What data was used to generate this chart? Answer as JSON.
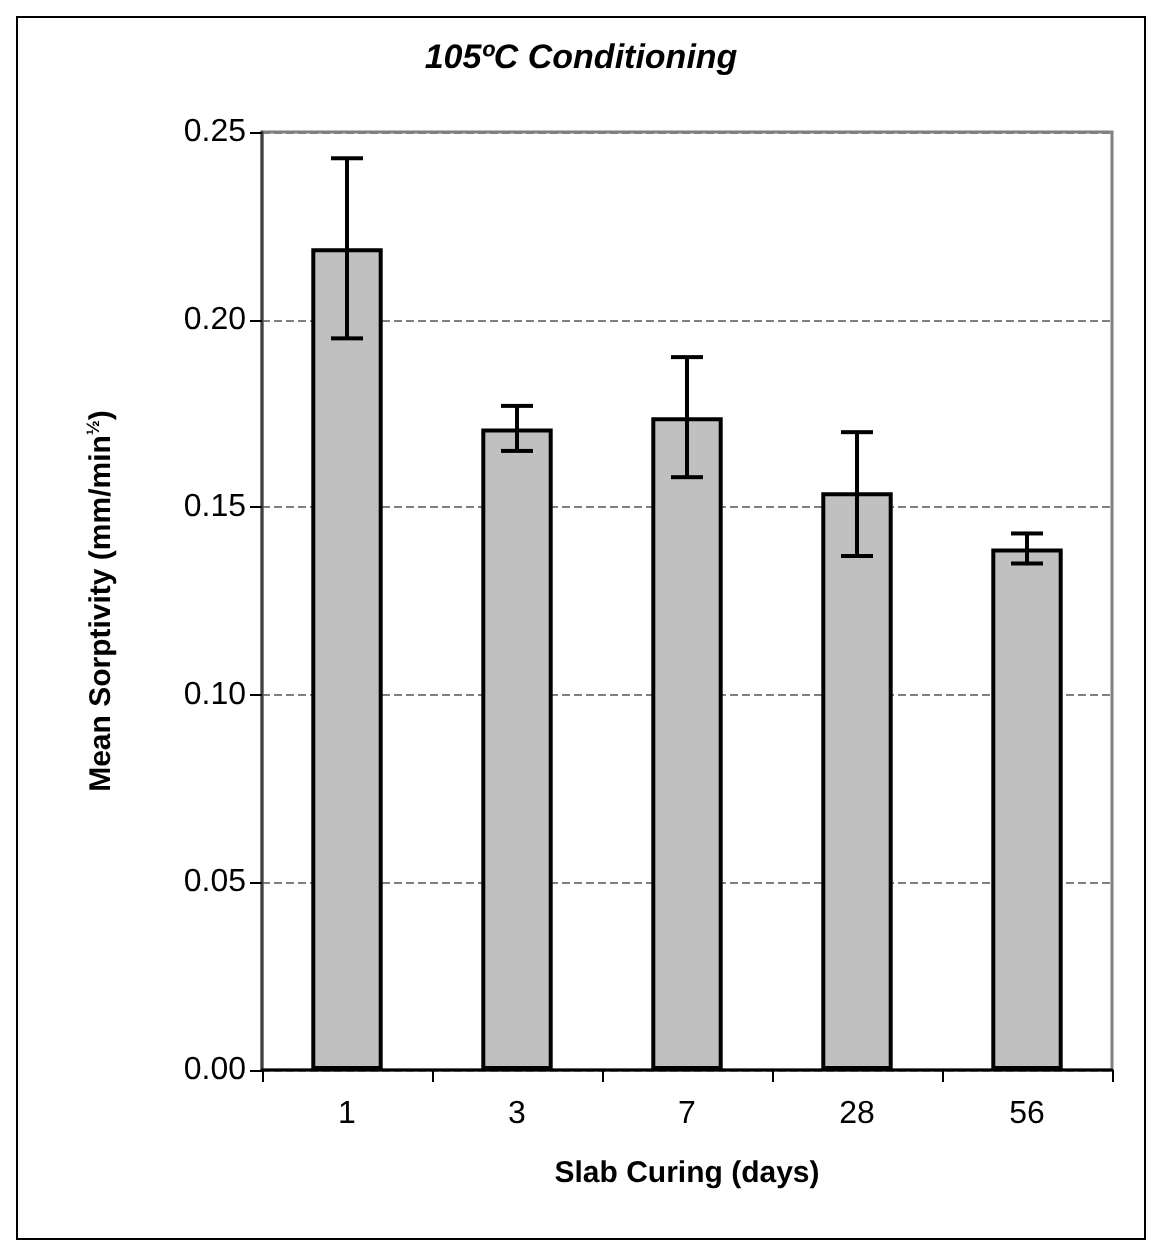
{
  "chart_data": {
    "type": "bar",
    "title": "105ºC Conditioning",
    "xlabel": "Slab Curing (days)",
    "ylabel": "Mean Sorptivity (mm/min$^{½}$)",
    "categories": [
      "1",
      "3",
      "7",
      "28",
      "56"
    ],
    "values": [
      0.219,
      0.171,
      0.174,
      0.154,
      0.139
    ],
    "errors": [
      [
        0.195,
        0.243
      ],
      [
        0.165,
        0.177
      ],
      [
        0.158,
        0.19
      ],
      [
        0.137,
        0.17
      ],
      [
        0.135,
        0.143
      ]
    ],
    "color": "#c0c0c0",
    "ylim": [
      0,
      0.25
    ],
    "yticks": [
      {
        "value": 0,
        "label": "0.00"
      },
      0.05,
      {
        "value": 0.1,
        "label": "0.10"
      },
      0.15,
      {
        "value": 0.2,
        "label": "0.20"
      },
      0.25
    ],
    "grid": "y"
  }
}
